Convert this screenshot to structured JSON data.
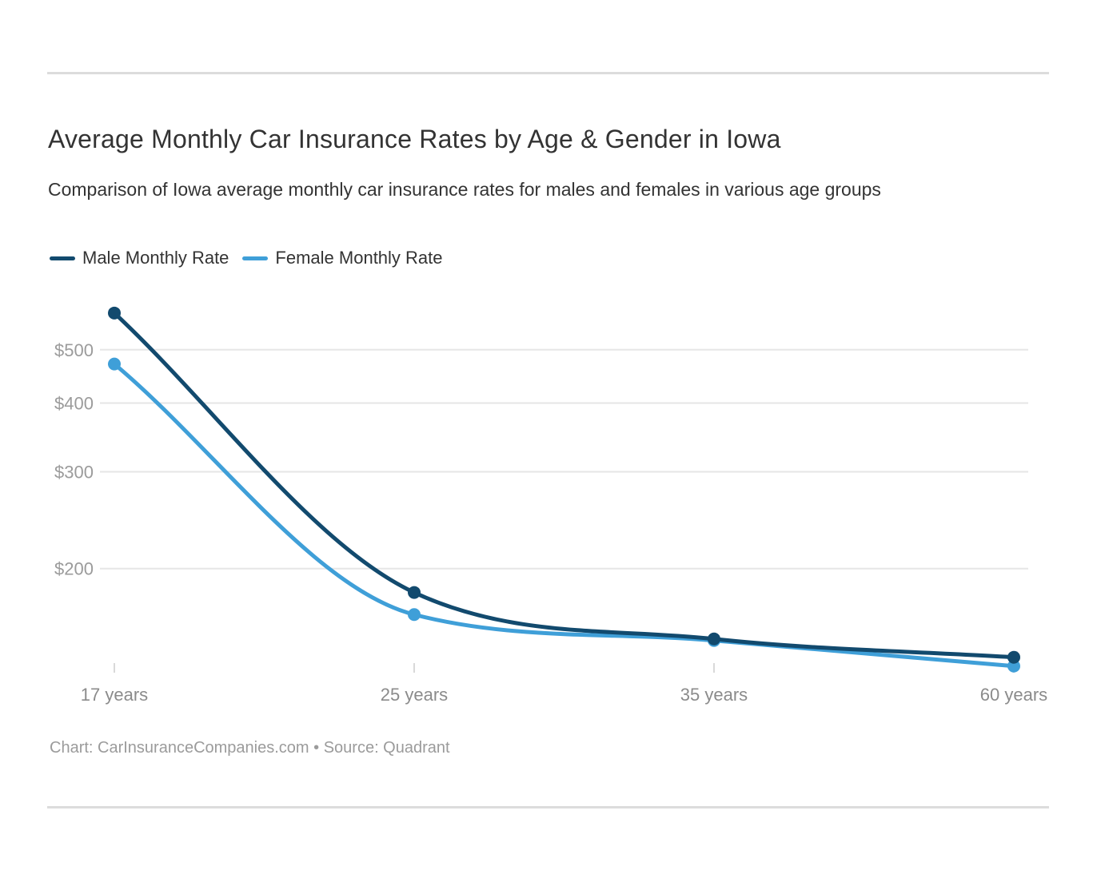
{
  "page": {
    "title": "Average Monthly Car Insurance Rates by Age & Gender in Iowa",
    "subtitle": "Comparison of Iowa average monthly car insurance rates for males and females in various age groups",
    "footer": "Chart: CarInsuranceCompanies.com • Source: Quadrant"
  },
  "legend": {
    "items": [
      {
        "label": "Male Monthly Rate",
        "color": "#124a6e"
      },
      {
        "label": "Female Monthly Rate",
        "color": "#3f9fd8"
      }
    ]
  },
  "colors": {
    "male_line": "#124a6e",
    "female_line": "#3f9fd8",
    "gridline": "#e6e6e6",
    "tick_mark": "#d9d9d9",
    "y_label": "#9b9b9b",
    "x_label": "#8b8b8b",
    "title_text": "#333333",
    "footer_text": "#9b9b9b",
    "rule": "#dcdcdc"
  },
  "chart_data": {
    "type": "line",
    "title": "Average Monthly Car Insurance Rates by Age & Gender in Iowa",
    "subtitle": "Comparison of Iowa average monthly car insurance rates for males and females in various age groups",
    "categories": [
      "17 years",
      "25 years",
      "35 years",
      "60 years"
    ],
    "series": [
      {
        "name": "Male Monthly Rate",
        "color": "#124a6e",
        "values": [
          583,
          181,
          149,
          138
        ]
      },
      {
        "name": "Female Monthly Rate",
        "color": "#3f9fd8",
        "values": [
          471,
          165,
          148,
          133
        ]
      }
    ],
    "y_axis": {
      "scale": "log",
      "tick_values": [
        500,
        400,
        300,
        200
      ],
      "tick_labels": [
        "$500",
        "$400",
        "$300",
        "$200"
      ],
      "unit_prefix": "$",
      "range_shown": [
        125,
        620
      ]
    },
    "x_axis": {
      "label_suffix": "years",
      "tick_marks": true
    },
    "grid": "horizontal-only",
    "legend_position": "top-left",
    "point_markers": true,
    "curve": "monotone",
    "source_note": "Chart: CarInsuranceCompanies.com • Source: Quadrant"
  }
}
